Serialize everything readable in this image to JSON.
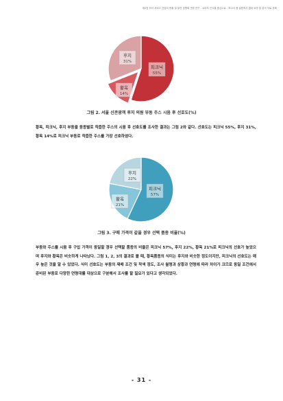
{
  "header_text": "제9장 외식 서비스 산업의 현황 및 발전 방향에 관한 연구 - 소비자 인식을 중심으로 - 보고서 중 설문조사 결과 요약 및 분석 자료 부록",
  "figure2": {
    "caption": "그림 2. 서울 신관광객 후지 의원 부동 주스 시음 후 선호도(%)",
    "chart_data": {
      "type": "pie",
      "categories": [
        "피크닉",
        "황옥",
        "후지"
      ],
      "values": [
        55,
        14,
        31
      ],
      "labels": [
        "피크닉\n55%",
        "황옥\n14%",
        "후지\n31%"
      ],
      "colors": [
        "#c33138",
        "#d9585f",
        "#d9a3a6"
      ]
    }
  },
  "paragraph1": "황옥, 피크닉, 후지 부동을 동종별로 착즙한 주스의 시음 후 선호도를 조사한 결과는 그림 2와 같다. 선호도는 피크닉 55%, 후지 31%, 황옥 14%로 피크닉 부동로 착즙한 주스를 가장 선호하였다.",
  "figure3": {
    "caption": "그림 3. 구매 가격이 같을 경우 선택 품종 비율(%)",
    "chart_data": {
      "type": "pie",
      "categories": [
        "피크닉",
        "황옥",
        "후지"
      ],
      "values": [
        57,
        21,
        22
      ],
      "labels": [
        "피크닉\n57%",
        "황옥\n21%",
        "후지\n22%"
      ],
      "colors": [
        "#3f9fbc",
        "#86c6da",
        "#b8d6df"
      ]
    }
  },
  "paragraph2": "부동와 주스를 시음 후 구입 가격이 동일할 경우 선택할 품종의 비율은 피크닉 57%, 후지 22%, 황옥 21%로 피크닉의 선호가 높았으며 후지와 황옥은 비슷하게 나타났다. 그림 1, 2, 3의 결과로 볼 때, 황옥품종의 식미는 후지와 비슷한 정도이지만, 피크닉의 선호도는 매우 높은 것을 알 수 있었다. 식미 선호도는 부동의 재배 조건 및 착색 정도, 조사 월령과 상황과 연령에 따라 차이가 크므로 동일 조건에서 준비된 부동로 다양한 연령대를 대상으로 구분해서 조사를 할 필요가 있다고 생각되었다.",
  "page_number": "- 31 -"
}
